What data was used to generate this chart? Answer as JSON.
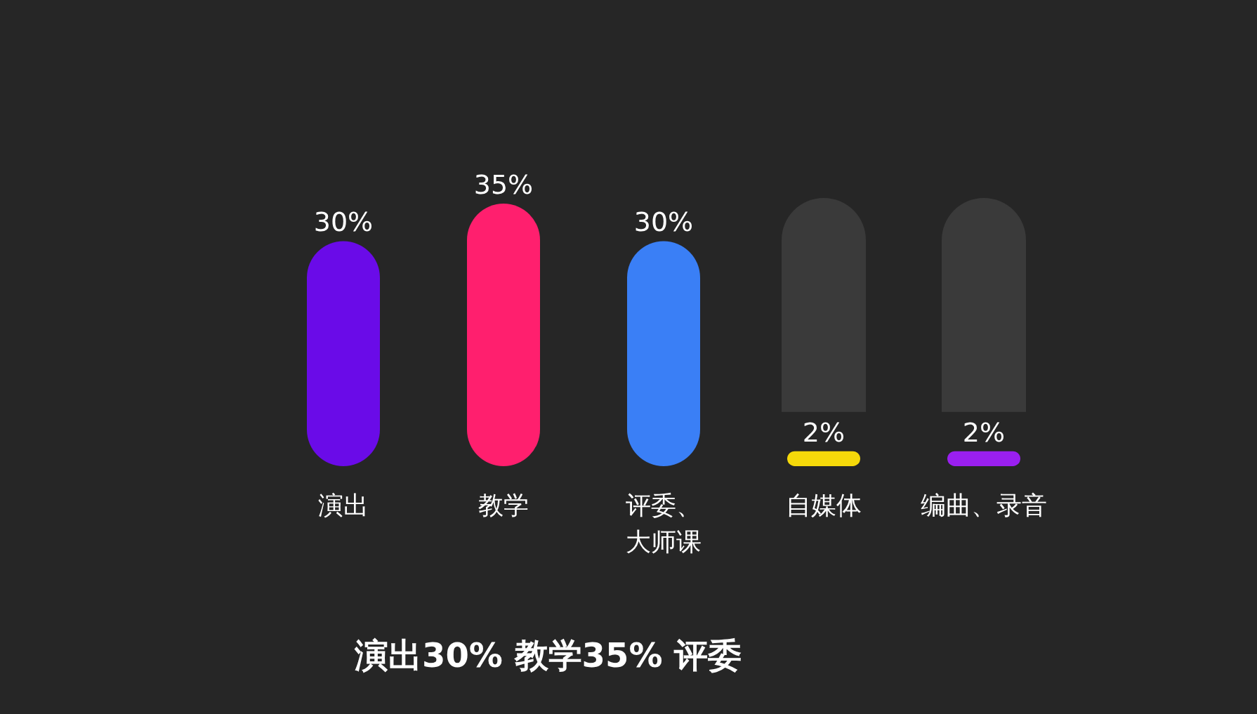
{
  "chart_data": {
    "type": "bar",
    "categories": [
      "演出",
      "教学",
      "评委、大师课",
      "自媒体",
      "编曲、录音"
    ],
    "values": [
      30,
      35,
      30,
      2,
      2
    ],
    "colors": [
      "#6a0be8",
      "#ff1f6e",
      "#3a7ff6",
      "#f5d90a",
      "#9a1ff0"
    ],
    "value_labels": [
      "30%",
      "35%",
      "30%",
      "2%",
      "2%"
    ],
    "annotations": [
      "演出30% 教学35% 评委"
    ]
  }
}
